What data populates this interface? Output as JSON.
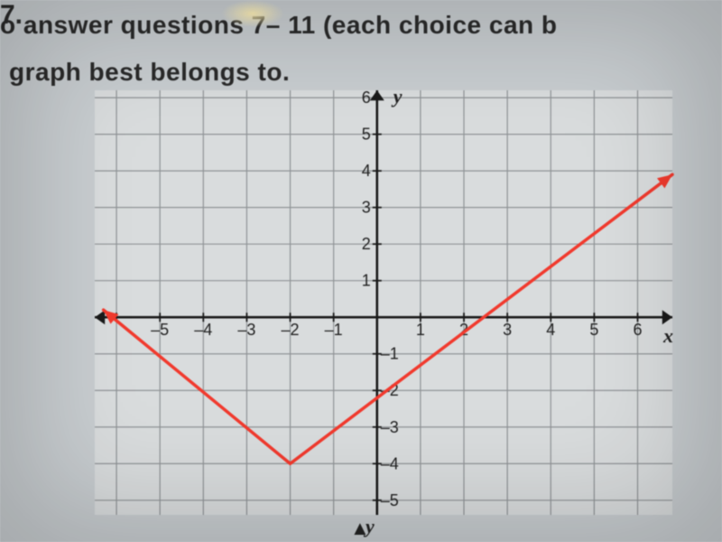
{
  "text": {
    "line1": "o answer questions 7– 11 (each choice can b",
    "line2": "graph best belongs to.",
    "question_number": "7.",
    "y_label": "y",
    "x_label": "x",
    "bottom_y_label": "y"
  },
  "chart": {
    "type": "line",
    "background_color": "#d9dcdd",
    "grid_color": "#8f9396",
    "axis_color": "#1a1a1a",
    "line_color": "#f13a2e",
    "line_width": 3.5,
    "xlim": [
      -6.5,
      6.8
    ],
    "ylim": [
      -5.4,
      6.2
    ],
    "xtick_step": 1,
    "ytick_step": 1,
    "xticks_labeled": [
      -5,
      -4,
      -3,
      -2,
      -1,
      1,
      2,
      3,
      4,
      5,
      6
    ],
    "yticks_labeled": [
      -5,
      -4,
      -3,
      -2,
      -1,
      1,
      2,
      3,
      4,
      5,
      6
    ],
    "tick_fontsize": 18,
    "axis_label_fontsize": 22,
    "series": [
      {
        "x": -6.3,
        "y": 0.2
      },
      {
        "x": -2.0,
        "y": -4.0
      },
      {
        "x": 6.8,
        "y": 3.9
      }
    ],
    "arrow_size": 8,
    "grid_width": 1.2,
    "axis_width": 2.6
  },
  "page_background": "#c8cdd0"
}
